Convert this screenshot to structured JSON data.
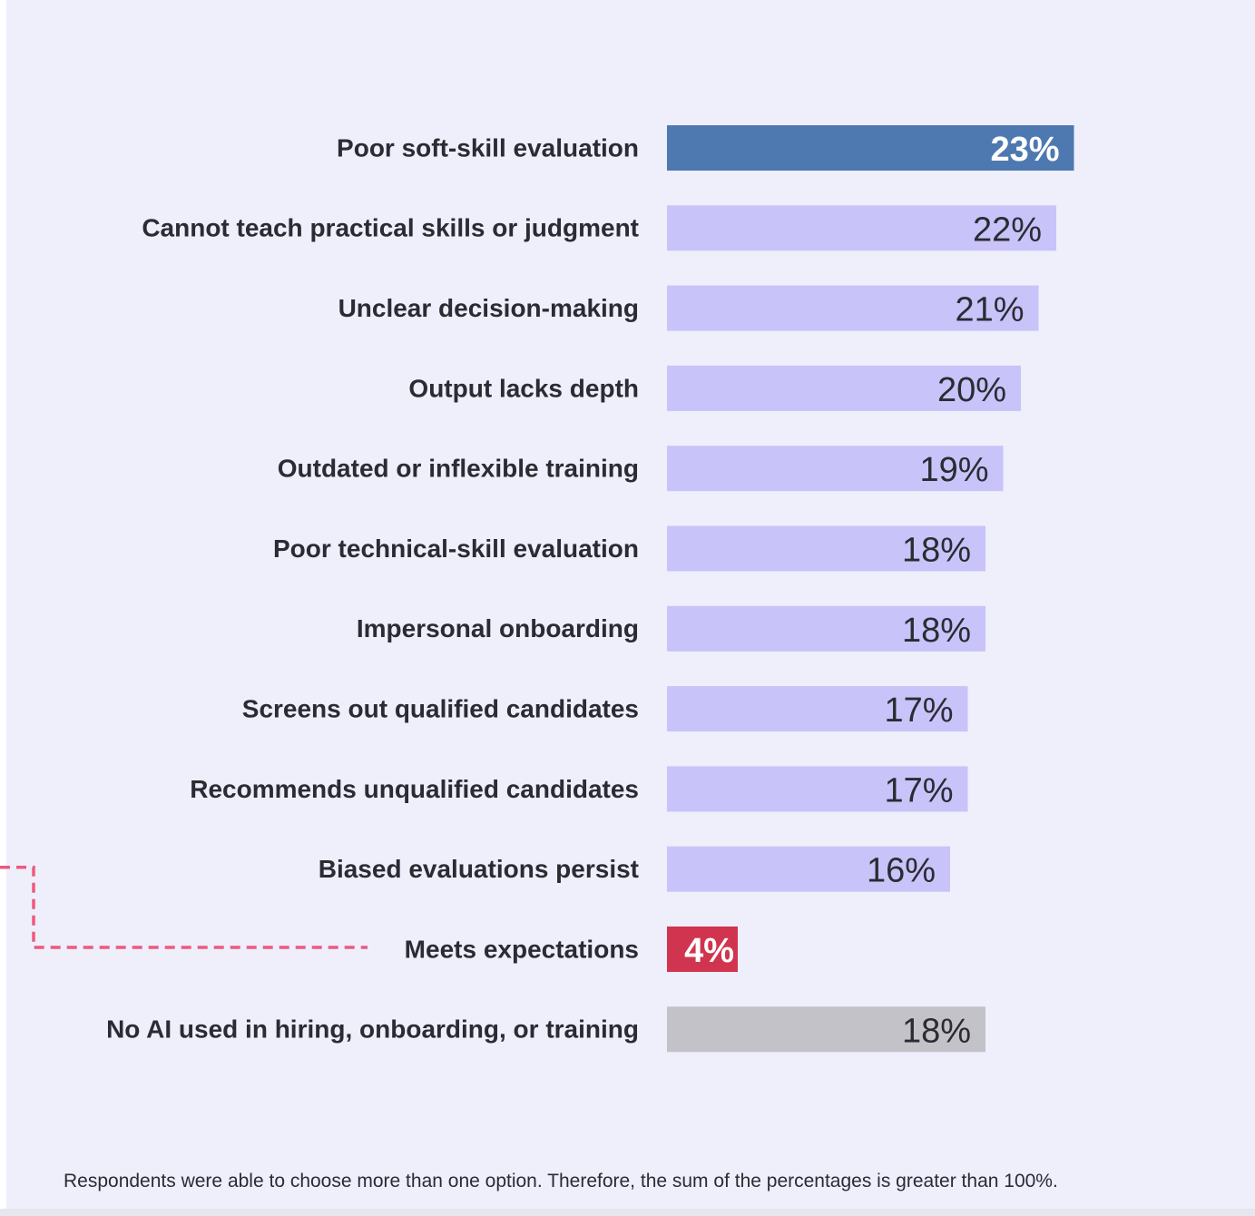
{
  "chart_data": {
    "type": "bar",
    "orientation": "horizontal",
    "categories": [
      "Poor soft-skill evaluation",
      "Cannot teach practical skills or judgment",
      "Unclear decision-making",
      "Output lacks depth",
      "Outdated or inflexible training",
      "Poor technical-skill evaluation",
      "Impersonal onboarding",
      "Screens out qualified candidates",
      "Recommends unqualified candidates",
      "Biased evaluations persist",
      "Meets expectations",
      "No AI used in hiring, onboarding, or training"
    ],
    "values": [
      23,
      22,
      21,
      20,
      19,
      18,
      18,
      17,
      17,
      16,
      4,
      18
    ],
    "value_labels": [
      "23%",
      "22%",
      "21%",
      "20%",
      "19%",
      "18%",
      "18%",
      "17%",
      "17%",
      "16%",
      "4%",
      "18%"
    ],
    "bar_colors": [
      "#4e79b0",
      "#c8c3f8",
      "#c8c3f8",
      "#c8c3f8",
      "#c8c3f8",
      "#c8c3f8",
      "#c8c3f8",
      "#c8c3f8",
      "#c8c3f8",
      "#c8c3f8",
      "#d1344e",
      "#c2c2c8"
    ],
    "label_colors": [
      "#ffffff",
      "#2b2b33",
      "#2b2b33",
      "#2b2b33",
      "#2b2b33",
      "#2b2b33",
      "#2b2b33",
      "#2b2b33",
      "#2b2b33",
      "#2b2b33",
      "#ffffff",
      "#2b2b33"
    ],
    "label_bold": [
      true,
      false,
      false,
      false,
      false,
      false,
      false,
      false,
      false,
      false,
      true,
      false
    ],
    "annotation": {
      "type": "dashed-connector",
      "color": "#ec5a7e",
      "target": "Meets expectations"
    },
    "title": "",
    "xlabel": "",
    "ylabel": "",
    "grid": false
  },
  "footnote": "Respondents were able to choose more than one option. Therefore, the sum of the percentages is greater than 100%."
}
